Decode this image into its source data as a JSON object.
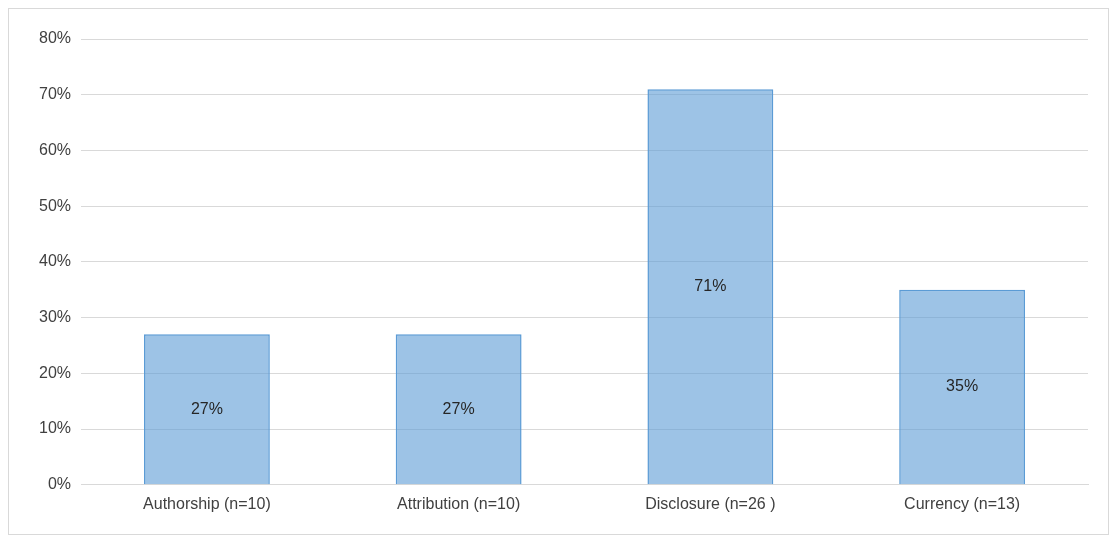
{
  "chart_data": {
    "type": "bar",
    "categories": [
      "Authorship (n=10)",
      "Attribution (n=10)",
      "Disclosure (n=26 )",
      "Currency (n=13)"
    ],
    "values": [
      27,
      27,
      71,
      35
    ],
    "color": "#5b9bd5",
    "value_labels": [
      "27%",
      "27%",
      "71%",
      "35%"
    ],
    "ylim": [
      0,
      80
    ],
    "yticks": [
      {
        "value": 0,
        "label": "0%"
      },
      {
        "value": 10,
        "label": "10%"
      },
      {
        "value": 20,
        "label": "20%"
      },
      {
        "value": 30,
        "label": "30%"
      },
      {
        "value": 40,
        "label": "40%"
      },
      {
        "value": 50,
        "label": "50%"
      },
      {
        "value": 60,
        "label": "60%"
      },
      {
        "value": 70,
        "label": "70%"
      },
      {
        "value": 80,
        "label": "80%"
      }
    ],
    "grid": "y",
    "legend": false
  }
}
